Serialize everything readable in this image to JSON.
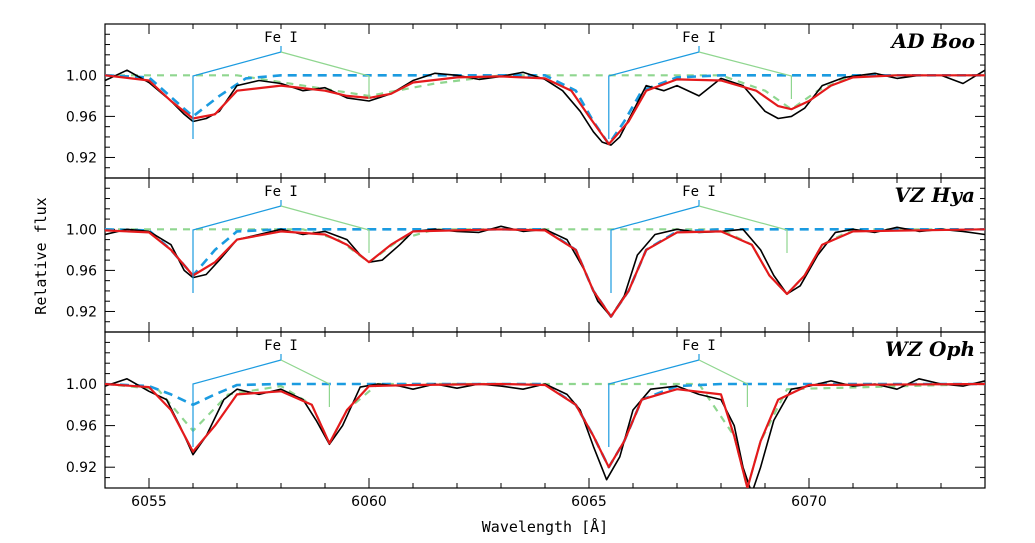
{
  "chart_data": {
    "type": "line",
    "xlabel": "Wavelength [Å]",
    "ylabel": "Relative flux",
    "xlim": [
      6054,
      6074
    ],
    "x_ticks": [
      6055,
      6060,
      6065,
      6070
    ],
    "x_tick_labels": [
      "6055",
      "6060",
      "6065",
      "6070"
    ],
    "y_ticks": [
      0.92,
      0.96,
      1.0
    ],
    "y_tick_labels": [
      "0.92",
      "0.96",
      "1.00"
    ],
    "colors": {
      "observed": "#000000",
      "combined_fit": "#e41a1c",
      "primary": "#1b9be0",
      "secondary": "#8fd68f",
      "marker_primary": "#1b9be0",
      "marker_secondary": "#8fd68f"
    },
    "panels": [
      {
        "label": "AD Boo",
        "ylim": [
          0.9,
          1.05
        ],
        "line_markers": [
          {
            "label": "Fe I",
            "x_label": 6058.0,
            "x_primary": 6056.0,
            "x_secondary": 6060.0
          },
          {
            "label": "Fe I",
            "x_label": 6067.5,
            "x_primary": 6065.45,
            "x_secondary": 6069.6
          }
        ],
        "series": [
          {
            "role": "observed",
            "style": "solid",
            "x": [
              6054.0,
              6054.5,
              6055.0,
              6055.5,
              6055.8,
              6056.0,
              6056.3,
              6056.6,
              6057.0,
              6057.5,
              6058.0,
              6058.5,
              6059.0,
              6059.5,
              6060.0,
              6060.5,
              6061.0,
              6061.5,
              6062.0,
              6062.5,
              6063.0,
              6063.5,
              6064.0,
              6064.4,
              6064.8,
              6065.1,
              6065.3,
              6065.5,
              6065.7,
              6066.0,
              6066.3,
              6066.7,
              6067.0,
              6067.5,
              6068.0,
              6068.5,
              6069.0,
              6069.3,
              6069.6,
              6069.9,
              6070.3,
              6070.8,
              6071.5,
              6072.0,
              6072.5,
              6073.0,
              6073.5,
              6074.0
            ],
            "y": [
              0.995,
              1.005,
              0.993,
              0.975,
              0.962,
              0.955,
              0.958,
              0.965,
              0.99,
              0.995,
              0.992,
              0.985,
              0.988,
              0.978,
              0.975,
              0.982,
              0.995,
              1.002,
              1.0,
              0.996,
              0.999,
              1.003,
              0.996,
              0.985,
              0.965,
              0.945,
              0.935,
              0.932,
              0.94,
              0.965,
              0.99,
              0.985,
              0.99,
              0.98,
              0.997,
              0.99,
              0.965,
              0.958,
              0.96,
              0.968,
              0.99,
              0.998,
              1.002,
              0.997,
              1.0,
              1.0,
              0.992,
              1.005
            ]
          },
          {
            "role": "combined_fit",
            "style": "solid",
            "x": [
              6054.0,
              6055.0,
              6055.5,
              6056.0,
              6056.5,
              6057.0,
              6058.0,
              6059.0,
              6059.5,
              6060.0,
              6060.5,
              6061.0,
              6062.0,
              6063.0,
              6064.0,
              6064.6,
              6065.0,
              6065.45,
              6065.9,
              6066.3,
              6067.0,
              6068.0,
              6068.8,
              6069.3,
              6069.6,
              6070.0,
              6070.5,
              6071.0,
              6072.0,
              6074.0
            ],
            "y": [
              1.0,
              0.995,
              0.975,
              0.958,
              0.962,
              0.985,
              0.99,
              0.985,
              0.98,
              0.978,
              0.982,
              0.993,
              0.998,
              0.999,
              0.997,
              0.985,
              0.96,
              0.933,
              0.955,
              0.985,
              0.996,
              0.995,
              0.985,
              0.97,
              0.967,
              0.975,
              0.99,
              0.998,
              1.0,
              1.0
            ]
          },
          {
            "role": "primary",
            "style": "dashed",
            "x": [
              6054.0,
              6055.0,
              6055.6,
              6056.0,
              6056.6,
              6057.2,
              6058.0,
              6064.0,
              6064.7,
              6065.1,
              6065.45,
              6065.8,
              6066.2,
              6067.0,
              6068.0,
              6074.0
            ],
            "y": [
              1.0,
              0.998,
              0.975,
              0.96,
              0.98,
              0.997,
              1.0,
              1.0,
              0.985,
              0.955,
              0.933,
              0.955,
              0.985,
              0.998,
              1.0,
              1.0
            ]
          },
          {
            "role": "secondary",
            "style": "dashed",
            "x": [
              6054.0,
              6057.0,
              6058.5,
              6060.0,
              6061.5,
              6063.0,
              6068.0,
              6069.0,
              6069.6,
              6070.2,
              6071.0,
              6074.0
            ],
            "y": [
              1.0,
              1.0,
              0.99,
              0.98,
              0.992,
              1.0,
              1.0,
              0.985,
              0.967,
              0.985,
              1.0,
              1.0
            ]
          }
        ]
      },
      {
        "label": "VZ Hya",
        "ylim": [
          0.9,
          1.05
        ],
        "line_markers": [
          {
            "label": "Fe I",
            "x_label": 6058.0,
            "x_primary": 6056.0,
            "x_secondary": 6060.0
          },
          {
            "label": "Fe I",
            "x_label": 6067.5,
            "x_primary": 6065.5,
            "x_secondary": 6069.5
          }
        ],
        "series": [
          {
            "role": "observed",
            "style": "solid",
            "x": [
              6054.0,
              6054.5,
              6055.0,
              6055.5,
              6055.8,
              6056.0,
              6056.3,
              6056.6,
              6057.0,
              6057.5,
              6058.0,
              6058.5,
              6059.0,
              6059.5,
              6059.8,
              6060.0,
              6060.3,
              6060.7,
              6061.0,
              6061.5,
              6062.0,
              6062.5,
              6063.0,
              6063.5,
              6064.0,
              6064.5,
              6064.9,
              6065.2,
              6065.5,
              6065.8,
              6066.1,
              6066.5,
              6067.0,
              6067.5,
              6068.0,
              6068.5,
              6068.9,
              6069.2,
              6069.5,
              6069.8,
              6070.2,
              6070.6,
              6071.0,
              6071.5,
              6072.0,
              6072.5,
              6073.0,
              6073.5,
              6074.0
            ],
            "y": [
              0.995,
              1.0,
              0.998,
              0.985,
              0.96,
              0.953,
              0.956,
              0.97,
              0.99,
              0.995,
              1.0,
              0.995,
              0.998,
              0.99,
              0.975,
              0.968,
              0.97,
              0.985,
              0.998,
              1.0,
              0.998,
              0.997,
              1.003,
              0.998,
              1.0,
              0.99,
              0.96,
              0.93,
              0.915,
              0.935,
              0.975,
              0.995,
              1.0,
              0.997,
              0.998,
              1.0,
              0.98,
              0.955,
              0.937,
              0.945,
              0.975,
              0.997,
              1.0,
              0.997,
              1.002,
              0.998,
              1.0,
              0.998,
              0.995
            ]
          },
          {
            "role": "combined_fit",
            "style": "solid",
            "x": [
              6054.0,
              6055.0,
              6055.5,
              6056.0,
              6056.5,
              6057.0,
              6058.0,
              6059.0,
              6059.5,
              6060.0,
              6060.5,
              6061.0,
              6063.0,
              6064.0,
              6064.7,
              6065.1,
              6065.5,
              6065.9,
              6066.3,
              6067.0,
              6068.0,
              6068.7,
              6069.1,
              6069.5,
              6069.9,
              6070.3,
              6071.0,
              6074.0
            ],
            "y": [
              0.999,
              0.997,
              0.98,
              0.955,
              0.968,
              0.99,
              0.998,
              0.995,
              0.985,
              0.968,
              0.985,
              0.998,
              1.0,
              0.999,
              0.98,
              0.94,
              0.915,
              0.94,
              0.98,
              0.997,
              0.998,
              0.985,
              0.955,
              0.937,
              0.955,
              0.985,
              0.998,
              1.0
            ]
          },
          {
            "role": "primary",
            "style": "dashed",
            "x": [
              6054.0,
              6055.0,
              6055.5,
              6056.0,
              6056.5,
              6057.0,
              6058.0,
              6064.0,
              6064.7,
              6065.1,
              6065.5,
              6065.9,
              6066.3,
              6067.0,
              6068.0,
              6074.0
            ],
            "y": [
              1.0,
              0.999,
              0.98,
              0.955,
              0.98,
              0.998,
              1.0,
              1.0,
              0.98,
              0.94,
              0.915,
              0.94,
              0.98,
              0.998,
              1.0,
              1.0
            ]
          },
          {
            "role": "secondary",
            "style": "dashed",
            "x": [
              6054.0,
              6058.5,
              6059.3,
              6060.0,
              6060.7,
              6061.5,
              6068.0,
              6068.7,
              6069.1,
              6069.5,
              6069.9,
              6070.3,
              6071.0,
              6074.0
            ],
            "y": [
              1.0,
              1.0,
              0.99,
              0.968,
              0.99,
              1.0,
              1.0,
              0.985,
              0.955,
              0.937,
              0.955,
              0.985,
              1.0,
              1.0
            ]
          }
        ]
      },
      {
        "label": "WZ Oph",
        "ylim": [
          0.9,
          1.05
        ],
        "line_markers": [
          {
            "label": "Fe I",
            "x_label": 6058.0,
            "x_primary": 6056.0,
            "x_secondary": 6059.1
          },
          {
            "label": "Fe I",
            "x_label": 6067.5,
            "x_primary": 6065.45,
            "x_secondary": 6068.6
          }
        ],
        "series": [
          {
            "role": "observed",
            "style": "solid",
            "x": [
              6054.0,
              6054.5,
              6055.0,
              6055.4,
              6055.7,
              6056.0,
              6056.3,
              6056.7,
              6057.0,
              6057.5,
              6058.0,
              6058.5,
              6058.8,
              6059.1,
              6059.4,
              6059.8,
              6060.2,
              6060.7,
              6061.0,
              6061.5,
              6062.0,
              6062.5,
              6063.0,
              6063.5,
              6064.0,
              6064.5,
              6064.8,
              6065.1,
              6065.4,
              6065.7,
              6066.0,
              6066.4,
              6067.0,
              6067.5,
              6068.0,
              6068.3,
              6068.5,
              6068.7,
              6068.9,
              6069.2,
              6069.6,
              6070.0,
              6070.5,
              6071.0,
              6071.5,
              6072.0,
              6072.5,
              6073.0,
              6073.5,
              6074.0
            ],
            "y": [
              0.998,
              1.005,
              0.993,
              0.985,
              0.96,
              0.932,
              0.95,
              0.985,
              0.995,
              0.99,
              0.995,
              0.985,
              0.965,
              0.942,
              0.96,
              0.997,
              1.0,
              0.998,
              0.995,
              1.0,
              0.996,
              1.0,
              0.998,
              0.995,
              1.0,
              0.99,
              0.975,
              0.94,
              0.908,
              0.93,
              0.975,
              0.995,
              0.998,
              0.99,
              0.985,
              0.96,
              0.92,
              0.895,
              0.92,
              0.965,
              0.995,
              0.998,
              1.003,
              0.998,
              1.0,
              0.995,
              1.005,
              1.0,
              0.998,
              1.003
            ]
          },
          {
            "role": "combined_fit",
            "style": "solid",
            "x": [
              6054.0,
              6055.0,
              6055.5,
              6056.0,
              6056.5,
              6057.0,
              6058.0,
              6058.7,
              6059.1,
              6059.5,
              6060.0,
              6061.0,
              6063.0,
              6064.0,
              6064.7,
              6065.1,
              6065.45,
              6065.8,
              6066.2,
              6067.0,
              6068.0,
              6068.3,
              6068.6,
              6068.9,
              6069.3,
              6070.0,
              6074.0
            ],
            "y": [
              1.0,
              0.997,
              0.975,
              0.935,
              0.96,
              0.99,
              0.993,
              0.98,
              0.943,
              0.975,
              0.998,
              0.999,
              1.0,
              0.999,
              0.98,
              0.95,
              0.92,
              0.945,
              0.985,
              0.995,
              0.99,
              0.95,
              0.9,
              0.945,
              0.985,
              0.999,
              1.0
            ]
          },
          {
            "role": "primary",
            "style": "dashed",
            "x": [
              6054.0,
              6055.0,
              6055.5,
              6056.0,
              6056.5,
              6057.0,
              6058.0,
              6064.0,
              6064.7,
              6065.1,
              6065.45,
              6065.8,
              6066.2,
              6067.0,
              6068.0,
              6074.0
            ],
            "y": [
              1.0,
              0.998,
              0.99,
              0.98,
              0.99,
              0.999,
              1.0,
              1.0,
              0.98,
              0.95,
              0.92,
              0.945,
              0.985,
              0.998,
              1.0,
              1.0
            ]
          },
          {
            "role": "secondary",
            "style": "dashed",
            "x": [
              6054.0,
              6055.2,
              6056.0,
              6056.8,
              6058.0,
              6058.7,
              6059.1,
              6059.5,
              6060.2,
              6067.5,
              6068.3,
              6068.6,
              6068.9,
              6069.5,
              6074.0
            ],
            "y": [
              1.0,
              0.995,
              0.955,
              0.99,
              0.998,
              0.98,
              0.943,
              0.975,
              1.0,
              1.0,
              0.95,
              0.9,
              0.945,
              0.995,
              1.0
            ]
          }
        ]
      }
    ]
  }
}
